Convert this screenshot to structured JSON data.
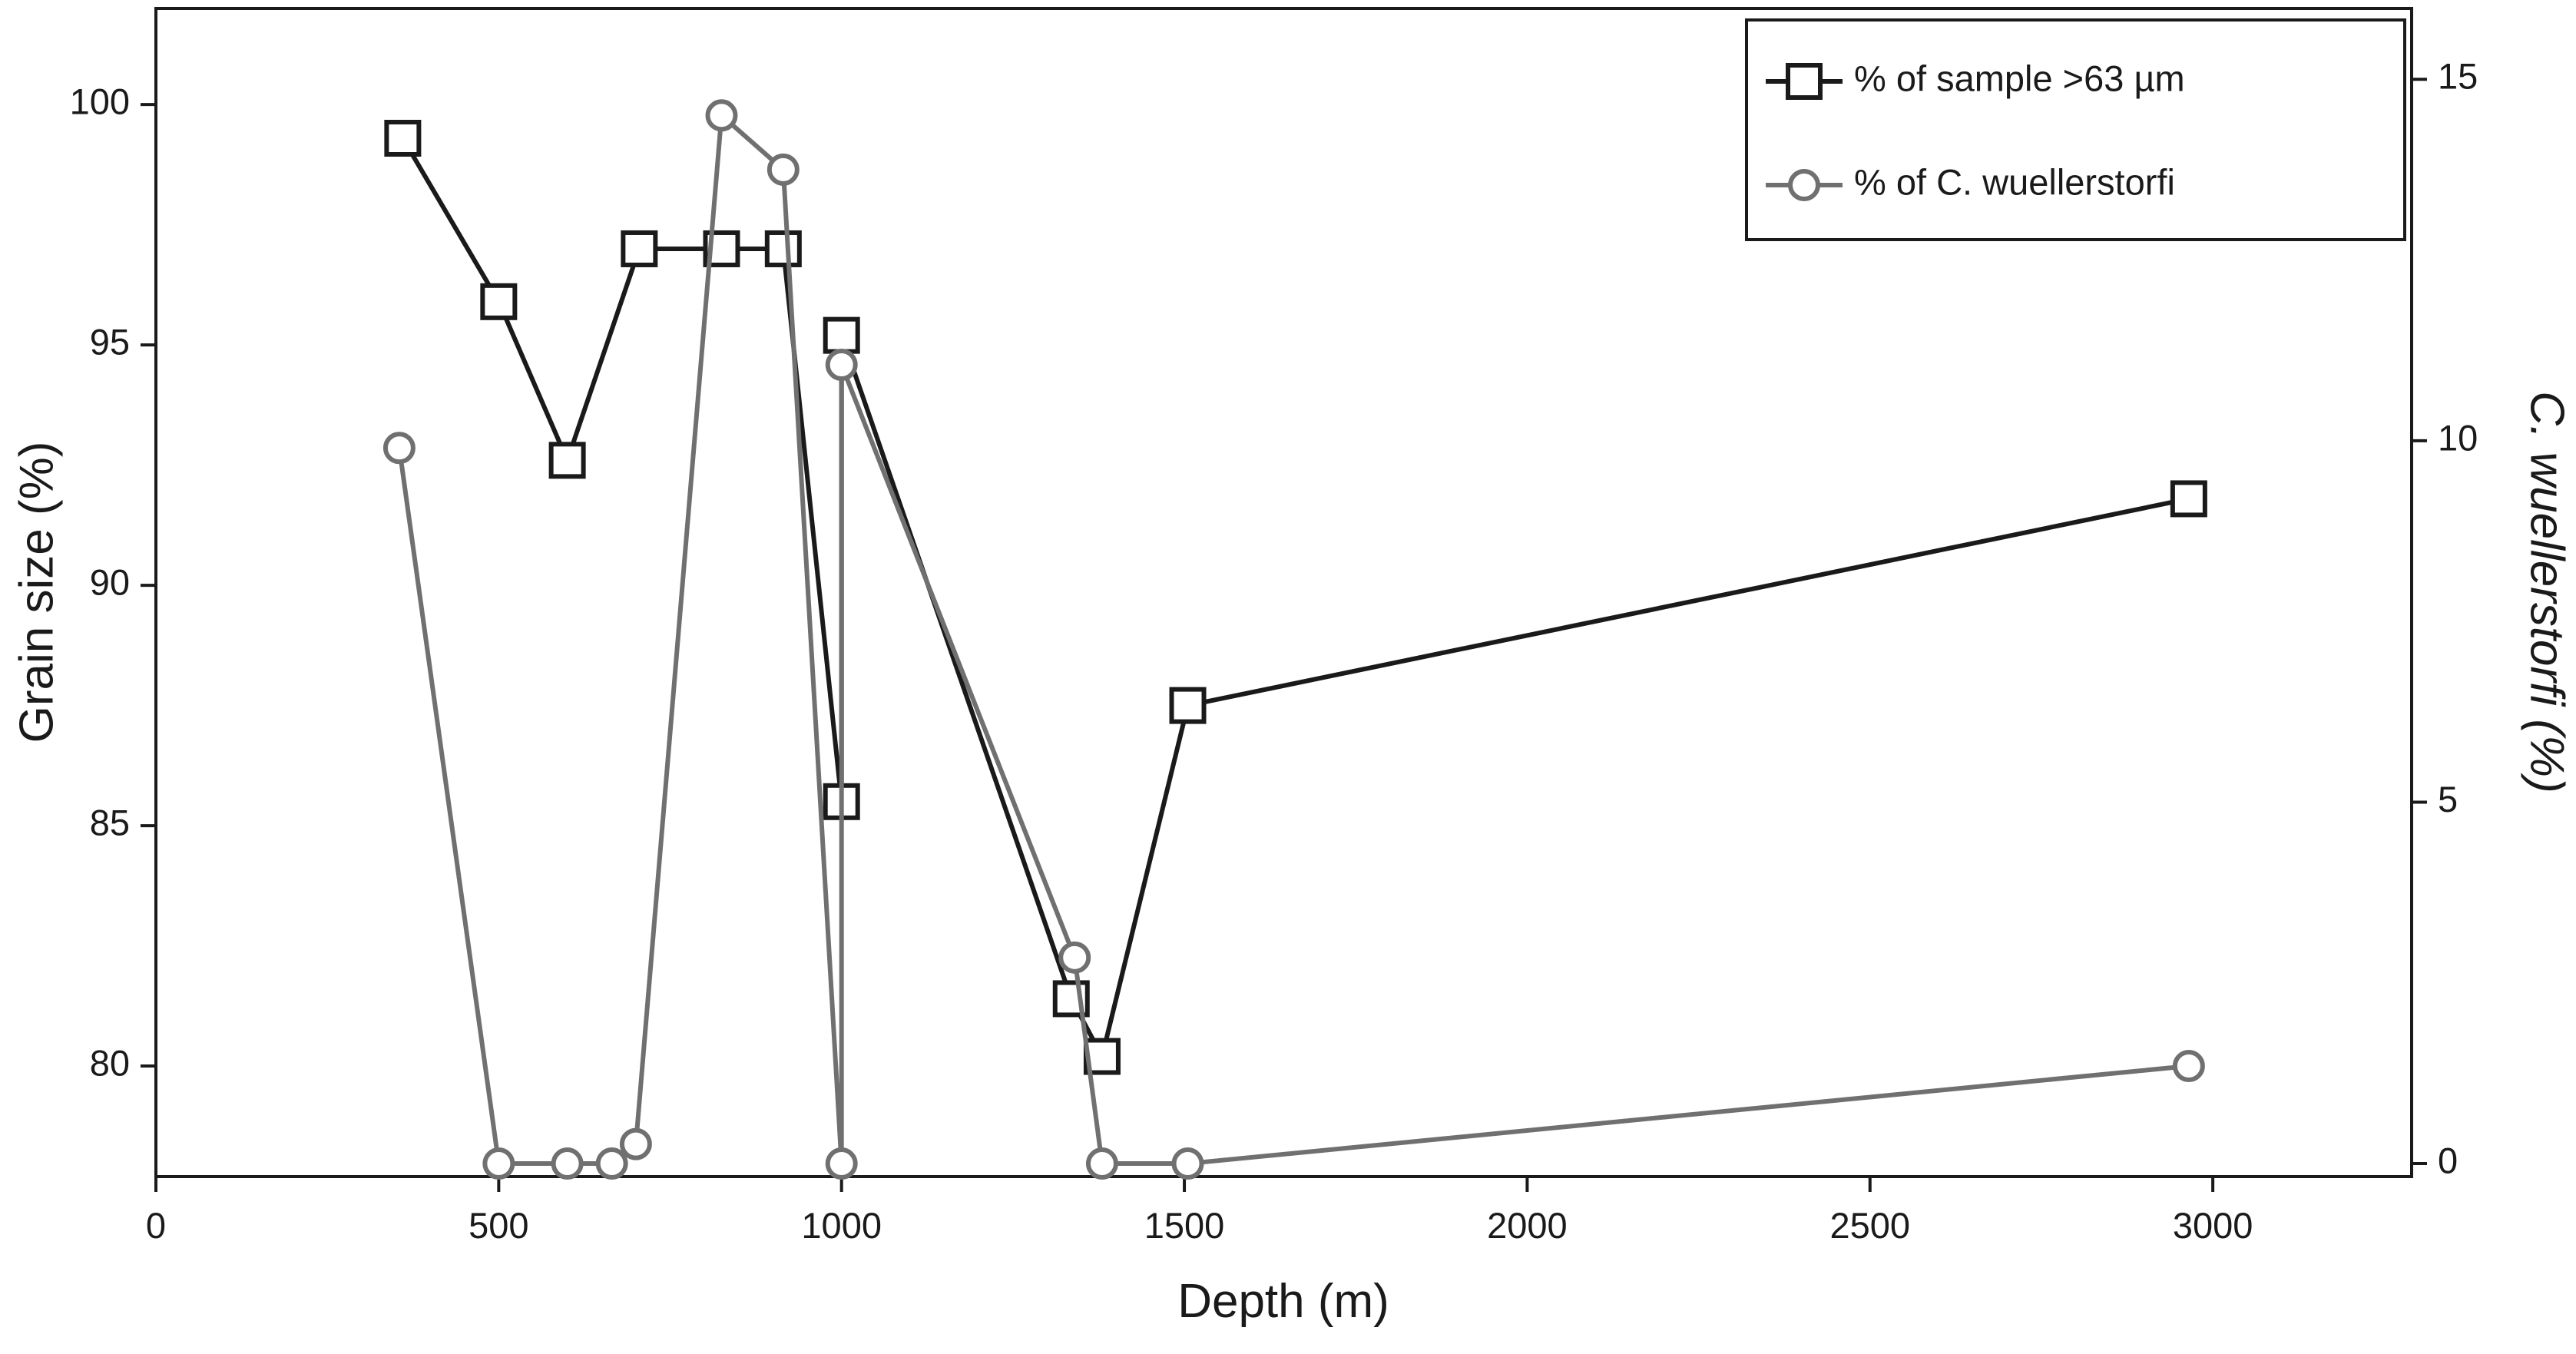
{
  "chart_data": {
    "type": "line",
    "x_label": "Depth (m)",
    "y_label": "Grain size (%)",
    "y2_label": "C. wuellerstorfi (%)",
    "xlim": [
      0,
      3290
    ],
    "xticks": [
      0,
      500,
      1000,
      1500,
      2000,
      2500,
      3000
    ],
    "ylim": [
      77.7,
      102
    ],
    "yticks": [
      80,
      85,
      90,
      95,
      100
    ],
    "y2lim": [
      -0.18,
      15.98
    ],
    "y2ticks": [
      0,
      5,
      10,
      15
    ],
    "legend": "upper right",
    "series": [
      {
        "name": "% of sample >63 µm",
        "color": "#1a1a1a",
        "marker": "square",
        "x": [
          360,
          500,
          600,
          705,
          825,
          915,
          1000,
          1000,
          1335,
          1380,
          1505,
          2965
        ],
        "values": [
          99.3,
          95.9,
          92.6,
          97.0,
          97.0,
          97.0,
          85.5,
          95.2,
          81.4,
          80.2,
          87.5,
          91.8
        ]
      },
      {
        "name": "% of C. wuellerstorfi",
        "color": "#707070",
        "marker": "circle",
        "axis": "y2",
        "x": [
          355,
          500,
          600,
          665,
          700,
          825,
          915,
          1000,
          1000,
          1340,
          1380,
          1505,
          2965
        ],
        "values": [
          9.9,
          0,
          0,
          0,
          0.27,
          14.5,
          13.75,
          0,
          11.05,
          2.85,
          0,
          0,
          1.35
        ]
      }
    ]
  }
}
